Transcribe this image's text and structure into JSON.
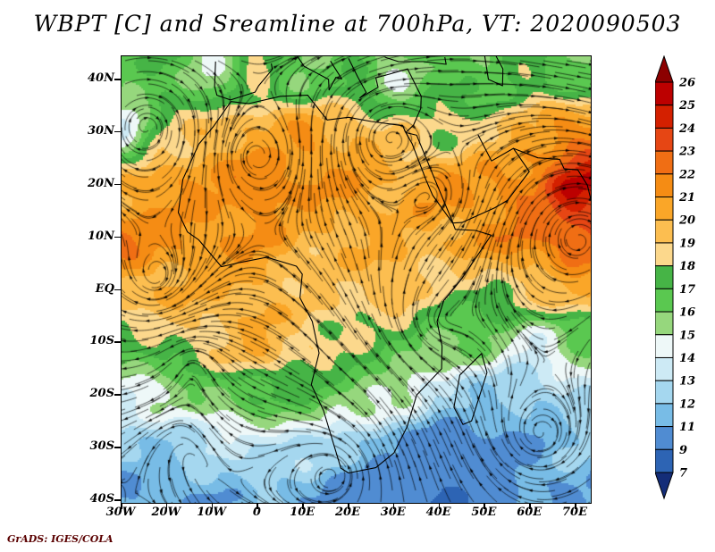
{
  "title": "WBPT [C] and Sreamline at 700hPa, VT: 2020090503",
  "attribution": "GrADS: IGES/COLA",
  "axes": {
    "lat_labels": [
      "40N",
      "30N",
      "20N",
      "10N",
      "EQ",
      "10S",
      "20S",
      "30S",
      "40S"
    ],
    "lon_labels": [
      "30W",
      "20W",
      "10W",
      "0",
      "10E",
      "20E",
      "30E",
      "40E",
      "50E",
      "60E",
      "70E"
    ]
  },
  "colorbar": {
    "labels": [
      "26",
      "25",
      "24",
      "23",
      "22",
      "21",
      "20",
      "19",
      "18",
      "17",
      "16",
      "15",
      "14",
      "13",
      "12",
      "11",
      "9",
      "7"
    ],
    "colors": [
      "#8c0000",
      "#bc0000",
      "#d42000",
      "#e64614",
      "#f06e14",
      "#f58c14",
      "#faa628",
      "#fcbe50",
      "#fcd88c",
      "#46b446",
      "#5ac850",
      "#96d77d",
      "#eef8f8",
      "#cdeaf5",
      "#a5d7ef",
      "#78bce6",
      "#508cd2",
      "#2d64b4",
      "#142d78"
    ]
  },
  "colors": {
    "background": "#ffffff",
    "frame": "#000000",
    "attribution_text": "#5a0000"
  },
  "chart_data": {
    "type": "heatmap",
    "variant": "filled-contour map with streamline overlay",
    "title": "WBPT [C] and Sreamline at 700hPa, VT: 2020090503",
    "field": "WBPT",
    "units": "C",
    "pressure_level_label": "700hPa",
    "valid_time_label": "2020090503",
    "xlabel": "longitude",
    "ylabel": "latitude",
    "x_tick_labels": [
      "30W",
      "20W",
      "10W",
      "0",
      "10E",
      "20E",
      "30E",
      "40E",
      "50E",
      "60E",
      "70E"
    ],
    "y_tick_labels": [
      "40N",
      "30N",
      "20N",
      "10N",
      "EQ",
      "10S",
      "20S",
      "30S",
      "40S"
    ],
    "xlim_deg": [
      -30,
      73
    ],
    "ylim_deg": [
      -40.5,
      44.5
    ],
    "legend_position": "right",
    "grid_lines": false,
    "contour_levels_C": [
      7,
      9,
      11,
      12,
      13,
      14,
      15,
      16,
      17,
      18,
      19,
      20,
      21,
      22,
      23,
      24,
      25,
      26
    ],
    "grid": {
      "lon_deg": [
        -30,
        -20,
        -10,
        0,
        10,
        20,
        30,
        40,
        50,
        60,
        70
      ],
      "lat_deg": [
        40,
        30,
        20,
        10,
        0,
        -10,
        -20,
        -30,
        -40
      ],
      "wbpt_c": [
        [
          16,
          17,
          15,
          18,
          16,
          17,
          15,
          17,
          16,
          18,
          16
        ],
        [
          14,
          18,
          20,
          20,
          21,
          20,
          19,
          18,
          19,
          20,
          22
        ],
        [
          20,
          21,
          21,
          22,
          21,
          21,
          20,
          21,
          21,
          22,
          25
        ],
        [
          22,
          21,
          21,
          21,
          20,
          20,
          20,
          20,
          21,
          22,
          23
        ],
        [
          20,
          20,
          20,
          20,
          19,
          19,
          20,
          18,
          18,
          19,
          20
        ],
        [
          17,
          18,
          19,
          20,
          19,
          18,
          17,
          16,
          16,
          14,
          16
        ],
        [
          14,
          15,
          16,
          17,
          17,
          16,
          15,
          13,
          12,
          12,
          13
        ],
        [
          12,
          12,
          13,
          13,
          13,
          12,
          11,
          10,
          10,
          11,
          12
        ],
        [
          11,
          11,
          11,
          12,
          11,
          10,
          10,
          9,
          10,
          11,
          11
        ]
      ]
    }
  }
}
